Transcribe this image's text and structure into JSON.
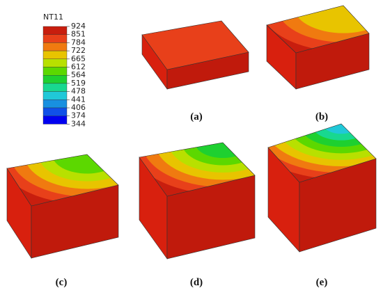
{
  "legend": {
    "title": "NT11",
    "labels": [
      924,
      851,
      784,
      722,
      665,
      612,
      564,
      519,
      478,
      441,
      406,
      374,
      344
    ],
    "colors": [
      "#c81e0e",
      "#e8401a",
      "#f07a10",
      "#e8c400",
      "#b8e000",
      "#5cd800",
      "#1ed030",
      "#18d890",
      "#20c8d8",
      "#1890e0",
      "#1050e8",
      "#0000f0"
    ]
  },
  "panels": [
    {
      "label": "(a)"
    },
    {
      "label": "(b)"
    },
    {
      "label": "(c)"
    },
    {
      "label": "(d)"
    },
    {
      "label": "(e)"
    }
  ]
}
